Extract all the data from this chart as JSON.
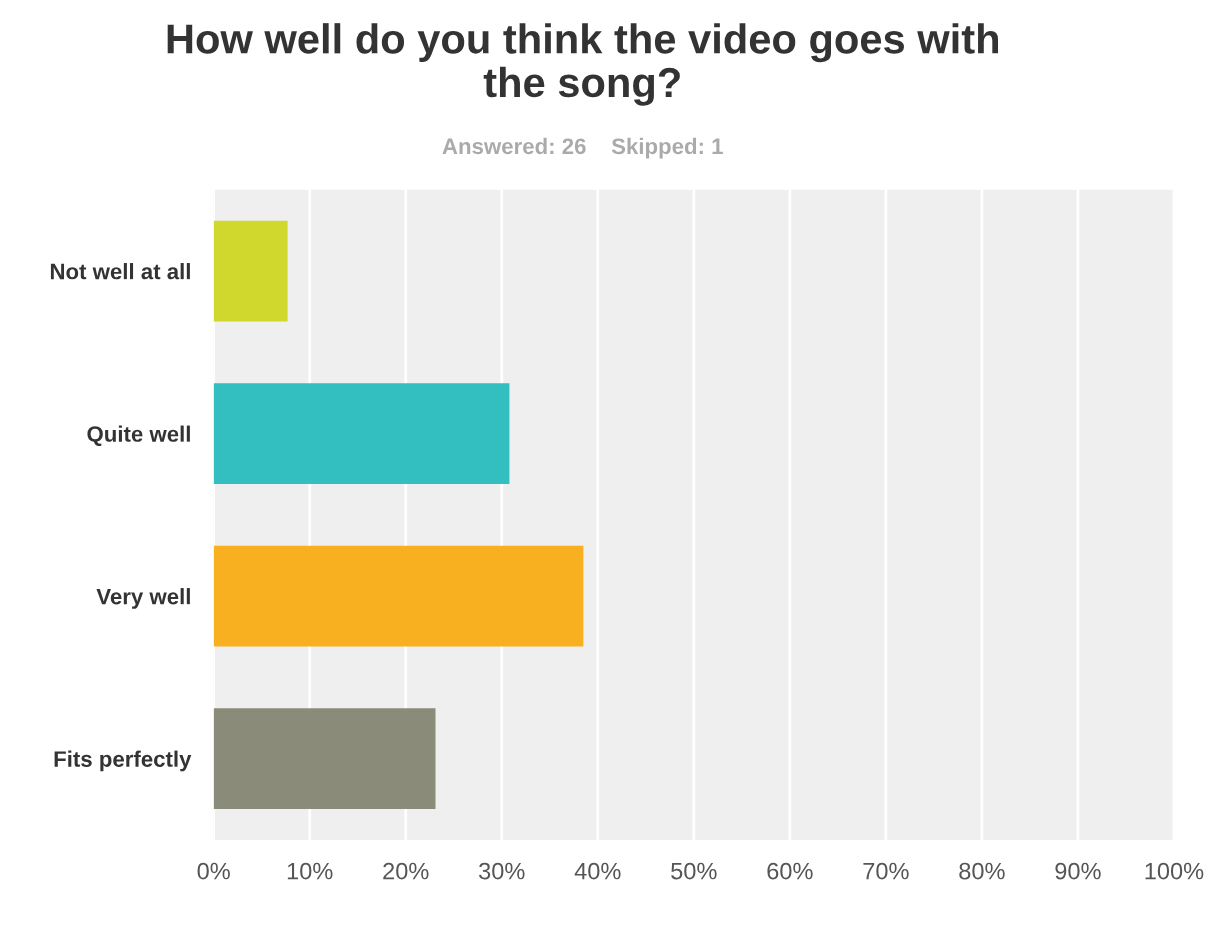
{
  "chart_data": {
    "type": "bar",
    "orientation": "horizontal",
    "title": "How well do you think the video goes with\nthe song?",
    "subtitle": "Answered: 26    Skipped: 1",
    "categories": [
      "Not well at all",
      "Quite well",
      "Very well",
      "Fits perfectly"
    ],
    "values": [
      7.7,
      30.8,
      38.5,
      23.1
    ],
    "colors": [
      "#d0d72d",
      "#33bec0",
      "#f8b020",
      "#8b8b7a"
    ],
    "xlim": [
      0,
      100
    ],
    "xticks": [
      {
        "value": 0,
        "label": "0%"
      },
      {
        "value": 10,
        "label": "10%"
      },
      {
        "value": 20,
        "label": "20%"
      },
      {
        "value": 30,
        "label": "30%"
      },
      {
        "value": 40,
        "label": "40%"
      },
      {
        "value": 50,
        "label": "50%"
      },
      {
        "value": 60,
        "label": "60%"
      },
      {
        "value": 70,
        "label": "70%"
      },
      {
        "value": 80,
        "label": "80%"
      },
      {
        "value": 90,
        "label": "90%"
      },
      {
        "value": 100,
        "label": "100%"
      }
    ],
    "grid": "x"
  }
}
